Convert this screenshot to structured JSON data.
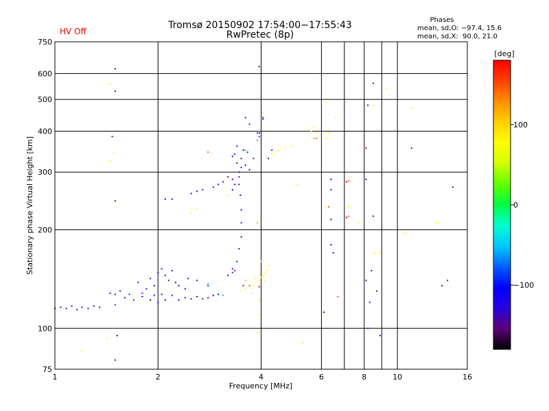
{
  "chart_data": {
    "type": "scatter",
    "status_label": "HV Off",
    "status_color": "#e00000",
    "title_lines": [
      "Tromsø 20150902 17:54:00−17:55:43",
      "RwPretec (8p)"
    ],
    "phases_info": {
      "heading": "Phases",
      "line1": "mean, sd,O: −97.4, 15.6",
      "line2": "mean, sd,X:  90.0, 21.0"
    },
    "xlabel": "Frequency [MHz]",
    "ylabel": "Stationary phase Virtual Height [km]",
    "x_scale": "log",
    "y_scale": "log",
    "xlim": [
      1,
      16
    ],
    "ylim": [
      75,
      750
    ],
    "x_ticks": [
      1,
      2,
      4,
      6,
      8,
      10,
      16
    ],
    "x_tick_labels": [
      "1",
      "2",
      "4",
      "6",
      "8",
      "10",
      "16"
    ],
    "x_minor_lines": [
      7,
      9
    ],
    "y_ticks": [
      75,
      100,
      200,
      300,
      400,
      500,
      600,
      750
    ],
    "y_tick_labels": [
      "75",
      "100",
      "200",
      "300",
      "400",
      "500",
      "600",
      "750"
    ],
    "y_grid": [
      100,
      200,
      300,
      400,
      500,
      600
    ],
    "grid": true,
    "colorbar": {
      "label": "[deg]",
      "range": [
        -180,
        180
      ],
      "ticks": [
        100,
        0,
        -100
      ],
      "tick_labels": [
        "100",
        "0",
        "−100"
      ],
      "stops": [
        "#000000",
        "#5a0078",
        "#2a00e0",
        "#0000ff",
        "#0060ff",
        "#00c8ff",
        "#00ffd0",
        "#00ff40",
        "#60ff00",
        "#d0ff00",
        "#ffff00",
        "#ffd000",
        "#ff9000",
        "#ff4000",
        "#ff0000"
      ]
    },
    "series": [
      {
        "color": "#1414d2",
        "points": [
          [
            1.0,
            115
          ],
          [
            1.04,
            116
          ],
          [
            1.08,
            115
          ],
          [
            1.12,
            117
          ],
          [
            1.16,
            114
          ],
          [
            1.2,
            116
          ],
          [
            1.25,
            115
          ],
          [
            1.3,
            117
          ],
          [
            1.35,
            116
          ],
          [
            1.45,
            128
          ],
          [
            1.5,
            127
          ],
          [
            1.55,
            130
          ],
          [
            1.6,
            124
          ],
          [
            1.65,
            127
          ],
          [
            1.7,
            122
          ],
          [
            1.8,
            125
          ],
          [
            1.9,
            122
          ],
          [
            1.95,
            126
          ],
          [
            2.0,
            120
          ],
          [
            2.05,
            127
          ],
          [
            2.1,
            122
          ],
          [
            2.2,
            126
          ],
          [
            2.3,
            122
          ],
          [
            2.4,
            124
          ],
          [
            2.5,
            123
          ],
          [
            2.6,
            125
          ],
          [
            2.7,
            123
          ],
          [
            2.8,
            124
          ],
          [
            2.9,
            126
          ],
          [
            3.0,
            127
          ],
          [
            1.75,
            138
          ],
          [
            1.85,
            132
          ],
          [
            1.9,
            142
          ],
          [
            1.95,
            135
          ],
          [
            2.0,
            148
          ],
          [
            2.05,
            152
          ],
          [
            2.1,
            145
          ],
          [
            2.15,
            140
          ],
          [
            2.2,
            150
          ],
          [
            2.25,
            138
          ],
          [
            2.3,
            135
          ],
          [
            2.4,
            132
          ],
          [
            2.45,
            142
          ],
          [
            2.6,
            140
          ],
          [
            2.8,
            135
          ],
          [
            3.2,
            145
          ],
          [
            3.3,
            152
          ],
          [
            3.4,
            160
          ],
          [
            3.45,
            175
          ],
          [
            3.5,
            190
          ],
          [
            3.5,
            210
          ],
          [
            3.5,
            230
          ],
          [
            3.48,
            255
          ],
          [
            3.45,
            275
          ],
          [
            3.45,
            300
          ],
          [
            3.4,
            320
          ],
          [
            3.35,
            340
          ],
          [
            3.5,
            310
          ],
          [
            3.6,
            315
          ],
          [
            3.7,
            305
          ],
          [
            3.8,
            330
          ],
          [
            3.45,
            290
          ],
          [
            3.5,
            330
          ],
          [
            3.3,
            335
          ],
          [
            3.4,
            360
          ],
          [
            3.55,
            350
          ],
          [
            3.65,
            345
          ],
          [
            3.7,
            420
          ],
          [
            3.6,
            440
          ],
          [
            3.95,
            395
          ],
          [
            4.05,
            440
          ],
          [
            4.2,
            330
          ],
          [
            4.3,
            350
          ],
          [
            3.2,
            290
          ],
          [
            3.1,
            280
          ],
          [
            3.0,
            275
          ],
          [
            2.9,
            270
          ],
          [
            2.7,
            265
          ],
          [
            2.6,
            262
          ],
          [
            2.5,
            258
          ],
          [
            2.2,
            248
          ],
          [
            2.1,
            248
          ],
          [
            3.3,
            285
          ],
          [
            3.35,
            275
          ],
          [
            3.3,
            265
          ],
          [
            3.95,
            630
          ],
          [
            1.5,
            620
          ],
          [
            1.5,
            530
          ],
          [
            1.47,
            385
          ],
          [
            1.5,
            245
          ],
          [
            8.5,
            560
          ],
          [
            8.5,
            220
          ],
          [
            8.7,
            130
          ],
          [
            6.4,
            285
          ],
          [
            6.4,
            265
          ],
          [
            6.4,
            215
          ],
          [
            6.4,
            180
          ],
          [
            6.5,
            170
          ],
          [
            8.2,
            480
          ],
          [
            8.1,
            285
          ],
          [
            8.1,
            140
          ],
          [
            8.2,
            100
          ],
          [
            8.9,
            95
          ],
          [
            13.5,
            135
          ],
          [
            14.0,
            140
          ],
          [
            14.5,
            270
          ],
          [
            11.0,
            355
          ],
          [
            1.5,
            80
          ],
          [
            1.52,
            95
          ],
          [
            8.4,
            150
          ],
          [
            8.3,
            120
          ],
          [
            6.1,
            112
          ]
        ]
      },
      {
        "color": "#8000ff",
        "points": [
          [
            1.5,
            118
          ],
          [
            1.7,
            122
          ],
          [
            1.8,
            128
          ],
          [
            2.4,
            132
          ],
          [
            3.3,
            148
          ],
          [
            3.35,
            150
          ],
          [
            3.9,
            395
          ],
          [
            4.05,
            435
          ],
          [
            3.95,
            385
          ]
        ]
      },
      {
        "color": "#00c8ff",
        "points": [
          [
            3.1,
            126
          ],
          [
            2.8,
            137
          ],
          [
            3.6,
            350
          ],
          [
            3.9,
            375
          ]
        ]
      },
      {
        "color": "#60ff00",
        "points": [
          [
            3.6,
            140
          ],
          [
            5.7,
            380
          ],
          [
            3.9,
            210
          ]
        ]
      },
      {
        "color": "#ffff00",
        "points": [
          [
            3.5,
            130
          ],
          [
            3.6,
            132
          ],
          [
            3.7,
            134
          ],
          [
            3.8,
            135
          ],
          [
            3.9,
            138
          ],
          [
            3.95,
            140
          ],
          [
            4.0,
            143
          ],
          [
            4.05,
            145
          ],
          [
            4.1,
            147
          ],
          [
            4.15,
            150
          ],
          [
            4.2,
            155
          ],
          [
            3.85,
            142
          ],
          [
            4.1,
            140
          ],
          [
            3.75,
            128
          ],
          [
            4.0,
            160
          ],
          [
            4.3,
            340
          ],
          [
            4.4,
            345
          ],
          [
            4.5,
            350
          ],
          [
            4.7,
            355
          ],
          [
            4.9,
            360
          ],
          [
            5.6,
            400
          ],
          [
            5.7,
            410
          ],
          [
            5.8,
            395
          ],
          [
            6.2,
            380
          ],
          [
            6.3,
            395
          ],
          [
            6.6,
            440
          ],
          [
            1.45,
            325
          ],
          [
            1.48,
            345
          ],
          [
            1.45,
            555
          ],
          [
            2.5,
            225
          ],
          [
            2.6,
            232
          ],
          [
            3.2,
            255
          ],
          [
            5.1,
            275
          ],
          [
            6.2,
            490
          ],
          [
            5.3,
            90
          ],
          [
            1.42,
            93
          ],
          [
            1.2,
            85
          ],
          [
            3.95,
            110
          ],
          [
            3.95,
            122
          ],
          [
            3.9,
            97
          ],
          [
            7.2,
            235
          ],
          [
            7.7,
            210
          ],
          [
            8.5,
            480
          ],
          [
            9.3,
            540
          ],
          [
            8.6,
            170
          ],
          [
            8.9,
            170
          ],
          [
            10.5,
            195
          ],
          [
            11.0,
            470
          ],
          [
            13.0,
            210
          ]
        ]
      },
      {
        "color": "#ff6000",
        "points": [
          [
            3.7,
            135
          ],
          [
            6.7,
            125
          ],
          [
            7.2,
            220
          ],
          [
            6.3,
            235
          ],
          [
            2.8,
            345
          ],
          [
            7.2,
            282
          ],
          [
            5.8,
            380
          ]
        ]
      },
      {
        "color": "#e00000",
        "points": [
          [
            3.95,
            134
          ],
          [
            3.55,
            135
          ],
          [
            8.1,
            355
          ],
          [
            7.1,
            280
          ],
          [
            7.1,
            218
          ]
        ]
      }
    ]
  }
}
